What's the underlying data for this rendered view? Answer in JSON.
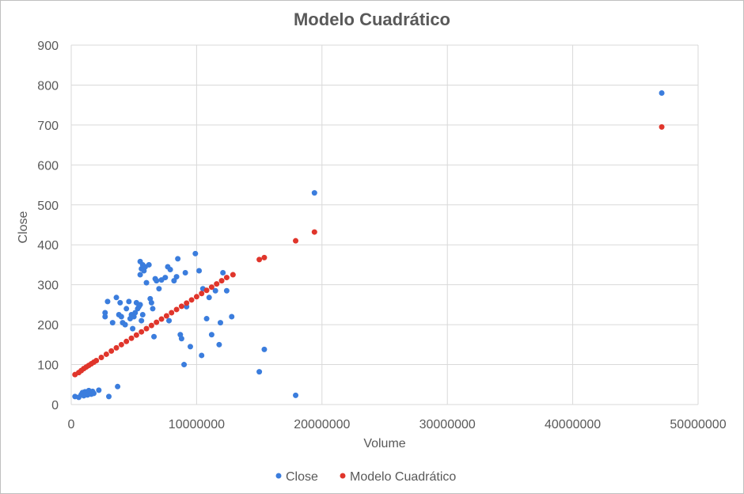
{
  "chart_data": {
    "type": "scatter",
    "title": "Modelo Cuadrático",
    "xlabel": "Volume",
    "ylabel": "Close",
    "xlim": [
      0,
      50000000
    ],
    "ylim": [
      0,
      900
    ],
    "x_ticks": [
      "0",
      "10000000",
      "20000000",
      "30000000",
      "40000000",
      "50000000"
    ],
    "y_ticks": [
      "0",
      "100",
      "200",
      "300",
      "400",
      "500",
      "600",
      "700",
      "800",
      "900"
    ],
    "grid": true,
    "legend_position": "bottom",
    "series": [
      {
        "name": "Close",
        "color": "#3b7ddd",
        "points": [
          [
            300000,
            20
          ],
          [
            600000,
            18
          ],
          [
            800000,
            25
          ],
          [
            900000,
            30
          ],
          [
            1000000,
            22
          ],
          [
            1100000,
            32
          ],
          [
            1200000,
            28
          ],
          [
            1300000,
            24
          ],
          [
            1400000,
            35
          ],
          [
            1500000,
            30
          ],
          [
            1600000,
            26
          ],
          [
            1700000,
            33
          ],
          [
            1800000,
            28
          ],
          [
            2200000,
            36
          ],
          [
            3000000,
            20
          ],
          [
            3700000,
            45
          ],
          [
            2700000,
            230
          ],
          [
            2700000,
            220
          ],
          [
            2900000,
            258
          ],
          [
            3300000,
            205
          ],
          [
            3600000,
            268
          ],
          [
            3800000,
            225
          ],
          [
            3900000,
            255
          ],
          [
            4000000,
            220
          ],
          [
            4100000,
            205
          ],
          [
            4300000,
            200
          ],
          [
            4400000,
            240
          ],
          [
            4600000,
            258
          ],
          [
            4700000,
            215
          ],
          [
            4800000,
            225
          ],
          [
            4900000,
            190
          ],
          [
            5000000,
            220
          ],
          [
            5100000,
            230
          ],
          [
            5200000,
            255
          ],
          [
            5300000,
            240
          ],
          [
            5400000,
            245
          ],
          [
            5500000,
            250
          ],
          [
            5600000,
            210
          ],
          [
            5700000,
            225
          ],
          [
            5500000,
            358
          ],
          [
            5600000,
            340
          ],
          [
            5700000,
            350
          ],
          [
            5900000,
            345
          ],
          [
            5500000,
            325
          ],
          [
            5800000,
            335
          ],
          [
            6000000,
            305
          ],
          [
            6200000,
            350
          ],
          [
            6300000,
            265
          ],
          [
            6400000,
            255
          ],
          [
            6500000,
            240
          ],
          [
            6600000,
            170
          ],
          [
            6700000,
            315
          ],
          [
            6800000,
            310
          ],
          [
            7000000,
            290
          ],
          [
            7200000,
            312
          ],
          [
            7500000,
            318
          ],
          [
            7700000,
            345
          ],
          [
            7800000,
            210
          ],
          [
            7900000,
            338
          ],
          [
            8200000,
            310
          ],
          [
            8400000,
            320
          ],
          [
            8500000,
            365
          ],
          [
            8700000,
            175
          ],
          [
            8800000,
            165
          ],
          [
            9000000,
            100
          ],
          [
            9100000,
            330
          ],
          [
            9200000,
            245
          ],
          [
            9500000,
            145
          ],
          [
            9900000,
            378
          ],
          [
            10200000,
            335
          ],
          [
            10400000,
            123
          ],
          [
            10500000,
            290
          ],
          [
            10800000,
            215
          ],
          [
            11000000,
            268
          ],
          [
            11200000,
            175
          ],
          [
            11500000,
            285
          ],
          [
            11800000,
            150
          ],
          [
            11900000,
            205
          ],
          [
            12100000,
            330
          ],
          [
            12400000,
            285
          ],
          [
            12800000,
            220
          ],
          [
            15000000,
            82
          ],
          [
            15400000,
            138
          ],
          [
            17900000,
            23
          ],
          [
            19400000,
            530
          ],
          [
            47100000,
            780
          ]
        ]
      },
      {
        "name": "Modelo Cuadrático",
        "color": "#e0352b",
        "points": [
          [
            300000,
            75
          ],
          [
            600000,
            80
          ],
          [
            800000,
            85
          ],
          [
            1000000,
            90
          ],
          [
            1200000,
            94
          ],
          [
            1400000,
            98
          ],
          [
            1600000,
            102
          ],
          [
            1800000,
            106
          ],
          [
            2000000,
            110
          ],
          [
            2400000,
            118
          ],
          [
            2800000,
            126
          ],
          [
            3200000,
            134
          ],
          [
            3600000,
            142
          ],
          [
            4000000,
            150
          ],
          [
            4400000,
            158
          ],
          [
            4800000,
            166
          ],
          [
            5200000,
            174
          ],
          [
            5600000,
            182
          ],
          [
            6000000,
            190
          ],
          [
            6400000,
            198
          ],
          [
            6800000,
            206
          ],
          [
            7200000,
            214
          ],
          [
            7600000,
            222
          ],
          [
            8000000,
            230
          ],
          [
            8400000,
            238
          ],
          [
            8800000,
            246
          ],
          [
            9200000,
            254
          ],
          [
            9600000,
            262
          ],
          [
            10000000,
            270
          ],
          [
            10400000,
            278
          ],
          [
            10800000,
            286
          ],
          [
            11200000,
            294
          ],
          [
            11600000,
            302
          ],
          [
            12000000,
            310
          ],
          [
            12400000,
            318
          ],
          [
            12900000,
            325
          ],
          [
            15000000,
            363
          ],
          [
            15400000,
            368
          ],
          [
            17900000,
            410
          ],
          [
            19400000,
            432
          ],
          [
            47100000,
            695
          ]
        ]
      }
    ]
  }
}
